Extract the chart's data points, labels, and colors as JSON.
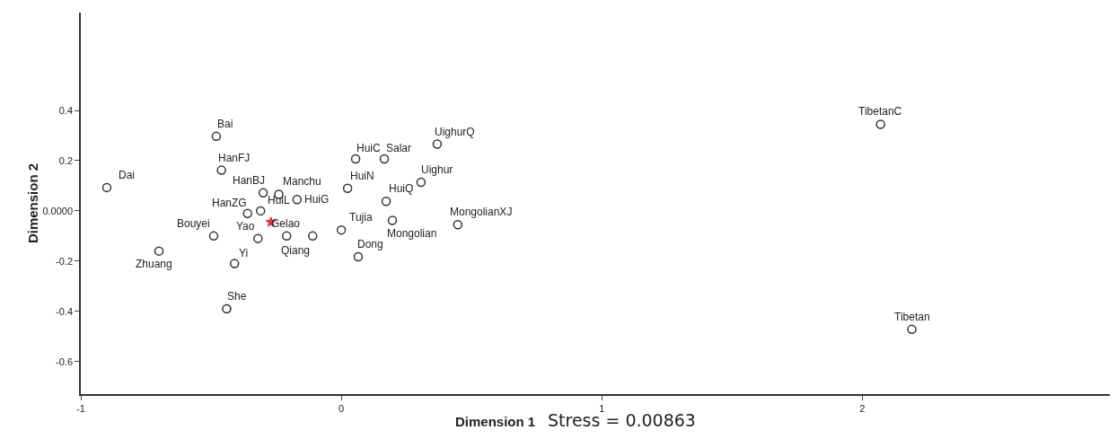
{
  "chart_data": {
    "type": "scatter",
    "xlabel": "Dimension 1",
    "ylabel": "Dimension 2",
    "xlim": [
      -1,
      2.95
    ],
    "xticks": [
      -1,
      0,
      1,
      2
    ],
    "ylim": [
      -0.73,
      0.79
    ],
    "yticks": [
      {
        "value": -0.6,
        "label": "-0.6"
      },
      {
        "value": -0.4,
        "label": "-0.4"
      },
      {
        "value": -0.2,
        "label": "-0.2"
      },
      {
        "value": 0,
        "label": "0.0000"
      },
      {
        "value": 0.2,
        "label": "0.2"
      },
      {
        "value": 0.4,
        "label": "0.4"
      }
    ],
    "grid": false,
    "series": [
      {
        "color": "#333333",
        "marker": "circle",
        "x": [
          -0.9,
          -0.48,
          -0.46,
          -0.3,
          -0.24,
          -0.17,
          -0.36,
          -0.31,
          -0.32,
          -0.21,
          -0.11,
          -0.49,
          -0.7,
          -0.41,
          -0.44,
          0.0,
          0.065,
          0.024,
          0.055,
          0.165,
          0.368,
          0.306,
          0.172,
          0.196,
          0.447,
          2.07,
          2.19
        ],
        "values": [
          0.093,
          0.297,
          0.162,
          0.072,
          0.066,
          0.045,
          -0.01,
          0.0,
          -0.11,
          -0.1,
          -0.1,
          -0.1,
          -0.16,
          -0.21,
          -0.39,
          -0.076,
          -0.183,
          0.09,
          0.207,
          0.207,
          0.266,
          0.114,
          0.038,
          -0.038,
          -0.055,
          0.345,
          -0.472
        ]
      },
      {
        "color": "#e8383d",
        "marker": "star",
        "x": [
          -0.27
        ],
        "values": [
          -0.045
        ]
      }
    ],
    "annotations": [
      {
        "text": "Dai",
        "x": -0.9,
        "y": 0.093
      },
      {
        "text": "Bai",
        "x": -0.48,
        "y": 0.297
      },
      {
        "text": "HanFJ",
        "x": -0.46,
        "y": 0.162
      },
      {
        "text": "HanBJ",
        "x": -0.3,
        "y": 0.072
      },
      {
        "text": "Manchu",
        "x": -0.24,
        "y": 0.066
      },
      {
        "text": "HuiG",
        "x": -0.17,
        "y": 0.045
      },
      {
        "text": "HanZG",
        "x": -0.36,
        "y": -0.01
      },
      {
        "text": "HuiL",
        "x": -0.31,
        "y": 0.0
      },
      {
        "text": "Yao",
        "x": -0.32,
        "y": -0.11
      },
      {
        "text": "Qiang",
        "x": -0.21,
        "y": -0.1
      },
      {
        "text": "Gelao",
        "x": -0.11,
        "y": -0.1
      },
      {
        "text": "Bouyei",
        "x": -0.49,
        "y": -0.1
      },
      {
        "text": "Zhuang",
        "x": -0.7,
        "y": -0.16
      },
      {
        "text": "Yi",
        "x": -0.41,
        "y": -0.21
      },
      {
        "text": "She",
        "x": -0.44,
        "y": -0.39
      },
      {
        "text": "Tujia",
        "x": 0.0,
        "y": -0.076
      },
      {
        "text": "Dong",
        "x": 0.065,
        "y": -0.183
      },
      {
        "text": "HuiN",
        "x": 0.024,
        "y": 0.09
      },
      {
        "text": "HuiC",
        "x": 0.055,
        "y": 0.207
      },
      {
        "text": "Salar",
        "x": 0.165,
        "y": 0.207
      },
      {
        "text": "UighurQ",
        "x": 0.368,
        "y": 0.266
      },
      {
        "text": "Uighur",
        "x": 0.306,
        "y": 0.114
      },
      {
        "text": "HuiQ",
        "x": 0.172,
        "y": 0.038
      },
      {
        "text": "Mongolian",
        "x": 0.196,
        "y": -0.038
      },
      {
        "text": "MongolianXJ",
        "x": 0.447,
        "y": -0.055
      },
      {
        "text": "TibetanC",
        "x": 2.07,
        "y": 0.345
      },
      {
        "text": "Tibetan",
        "x": 2.19,
        "y": -0.472
      },
      "Stress = 0.00863"
    ]
  }
}
